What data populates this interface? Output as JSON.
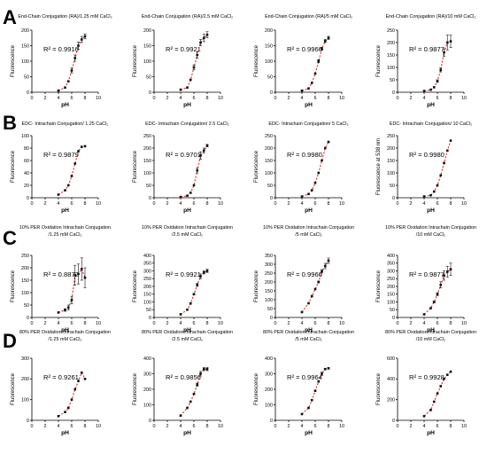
{
  "panel_labels": [
    "A",
    "B",
    "C",
    "D"
  ],
  "chart_data": [
    {
      "type": "scatter",
      "panel": "A",
      "title_lines": [
        "End-Chain Conjugation (RA)/1.25 mM CaCl₂"
      ],
      "xlabel": "pH",
      "ylabel": "Fluorescence",
      "xlim": [
        0,
        10
      ],
      "ylim": [
        0,
        200
      ],
      "x_ticks": [
        0,
        2,
        4,
        6,
        8,
        10
      ],
      "y_ticks": [
        0,
        50,
        100,
        150,
        200
      ],
      "r2": "R² = 0.9916",
      "x": [
        4,
        5,
        5.5,
        6,
        6.5,
        7,
        7.5,
        8
      ],
      "y": [
        5,
        15,
        35,
        70,
        110,
        150,
        170,
        180
      ],
      "err": [
        0,
        0,
        0,
        8,
        10,
        12,
        10,
        8
      ]
    },
    {
      "type": "scatter",
      "panel": "A",
      "title_lines": [
        "End-Chain Conjugation (RA)/2.5 mM CaCl₂"
      ],
      "xlabel": "pH",
      "ylabel": "Fluorescence",
      "xlim": [
        0,
        10
      ],
      "ylim": [
        0,
        200
      ],
      "x_ticks": [
        0,
        2,
        4,
        6,
        8,
        10
      ],
      "y_ticks": [
        0,
        50,
        100,
        150,
        200
      ],
      "r2": "R² = 0.9921",
      "x": [
        4,
        5,
        5.5,
        6,
        6.5,
        7,
        7.5,
        8
      ],
      "y": [
        8,
        15,
        40,
        80,
        120,
        160,
        175,
        185
      ],
      "err": [
        0,
        0,
        0,
        8,
        10,
        10,
        12,
        10
      ]
    },
    {
      "type": "scatter",
      "panel": "A",
      "title_lines": [
        "End-Chain Conjugation (RA)/5 mM CaCl₂"
      ],
      "xlabel": "pH",
      "ylabel": "Fluorescence",
      "xlim": [
        0,
        10
      ],
      "ylim": [
        0,
        200
      ],
      "x_ticks": [
        0,
        2,
        4,
        6,
        8,
        10
      ],
      "y_ticks": [
        0,
        50,
        100,
        150,
        200
      ],
      "r2": "R² = 0.9966",
      "x": [
        4,
        5,
        5.5,
        6,
        6.5,
        7,
        7.5,
        8
      ],
      "y": [
        5,
        12,
        30,
        60,
        100,
        140,
        165,
        175
      ],
      "err": [
        0,
        0,
        0,
        0,
        5,
        5,
        5,
        5
      ]
    },
    {
      "type": "scatter",
      "panel": "A",
      "title_lines": [
        "End-Chain Conjugation (RA)/10 mM CaCl₂"
      ],
      "xlabel": "pH",
      "ylabel": "Fluorescence",
      "xlim": [
        0,
        10
      ],
      "ylim": [
        0,
        250
      ],
      "x_ticks": [
        0,
        2,
        4,
        6,
        8,
        10
      ],
      "y_ticks": [
        0,
        50,
        100,
        150,
        200,
        250
      ],
      "r2": "R² = 0.9877",
      "x": [
        4,
        5,
        5.5,
        6,
        6.5,
        7,
        7.5,
        8
      ],
      "y": [
        5,
        10,
        20,
        45,
        90,
        160,
        200,
        205
      ],
      "err": [
        0,
        0,
        0,
        5,
        8,
        15,
        30,
        25
      ]
    },
    {
      "type": "scatter",
      "panel": "B",
      "title_lines": [
        "EDC- Intrachain Conjugation/ 1.25 CaCl₂"
      ],
      "xlabel": "pH",
      "ylabel": "Fluorescence",
      "xlim": [
        0,
        10
      ],
      "ylim": [
        0,
        100
      ],
      "x_ticks": [
        0,
        2,
        4,
        6,
        8,
        10
      ],
      "y_ticks": [
        0,
        20,
        40,
        60,
        80,
        100
      ],
      "r2": "R² = 0.9879",
      "x": [
        4,
        5,
        5.5,
        6,
        6.5,
        7,
        7.5,
        8
      ],
      "y": [
        5,
        12,
        20,
        35,
        55,
        75,
        82,
        83
      ],
      "err": [
        0,
        0,
        0,
        0,
        0,
        0,
        0,
        0
      ]
    },
    {
      "type": "scatter",
      "panel": "B",
      "title_lines": [
        "EDC- Intrachain Conjugation/ 2.5 CaCl₂"
      ],
      "xlabel": "pH",
      "ylabel": "Fluorescence",
      "xlim": [
        0,
        10
      ],
      "ylim": [
        0,
        250
      ],
      "x_ticks": [
        0,
        2,
        4,
        6,
        8,
        10
      ],
      "y_ticks": [
        0,
        50,
        100,
        150,
        200,
        250
      ],
      "r2": "R² = 0.9701",
      "x": [
        4,
        5,
        5.5,
        6,
        6.5,
        7,
        7.5,
        8
      ],
      "y": [
        3,
        8,
        20,
        50,
        110,
        170,
        190,
        210
      ],
      "err": [
        0,
        0,
        0,
        0,
        10,
        15,
        10,
        5
      ]
    },
    {
      "type": "scatter",
      "panel": "B",
      "title_lines": [
        "EDC- Intrachain Conjugation/ 5 CaCl₂"
      ],
      "xlabel": "pH",
      "ylabel": "Fluorescence",
      "xlim": [
        0,
        10
      ],
      "ylim": [
        0,
        250
      ],
      "x_ticks": [
        0,
        2,
        4,
        6,
        8,
        10
      ],
      "y_ticks": [
        0,
        50,
        100,
        150,
        200,
        250
      ],
      "r2": "R² = 0.9980",
      "x": [
        4,
        5,
        5.5,
        6,
        6.5,
        7,
        7.5,
        8
      ],
      "y": [
        5,
        15,
        30,
        60,
        100,
        150,
        200,
        225
      ],
      "err": [
        0,
        0,
        0,
        0,
        0,
        0,
        0,
        0
      ]
    },
    {
      "type": "scatter",
      "panel": "B",
      "title_lines": [
        "EDC- Intrachain Conjugation/ 10 CaCl₂"
      ],
      "xlabel": "pH",
      "ylabel": "Fluorescence at 538 nm",
      "xlim": [
        0,
        10
      ],
      "ylim": [
        0,
        250
      ],
      "x_ticks": [
        0,
        2,
        4,
        6,
        8,
        10
      ],
      "y_ticks": [
        0,
        50,
        100,
        150,
        200,
        250
      ],
      "r2": "R² = 0.9980",
      "x": [
        4,
        5,
        5.5,
        6,
        6.5,
        7,
        7.5,
        8
      ],
      "y": [
        5,
        10,
        25,
        50,
        90,
        140,
        190,
        230
      ],
      "err": [
        0,
        0,
        0,
        0,
        0,
        0,
        0,
        0
      ]
    },
    {
      "type": "scatter",
      "panel": "C",
      "title_lines": [
        "10% PER Oxidation Intrachain Conjugation",
        "/1.25 mM CaCl₂"
      ],
      "xlabel": "pH",
      "ylabel": "Fluorescence",
      "xlim": [
        0,
        10
      ],
      "ylim": [
        0,
        250
      ],
      "x_ticks": [
        0,
        2,
        4,
        6,
        8,
        10
      ],
      "y_ticks": [
        0,
        50,
        100,
        150,
        200,
        250
      ],
      "r2": "R² = 0.8872",
      "x": [
        4,
        5,
        5.5,
        6,
        6.5,
        7,
        7.5,
        8
      ],
      "y": [
        20,
        30,
        40,
        70,
        170,
        175,
        195,
        160
      ],
      "err": [
        0,
        5,
        10,
        15,
        40,
        40,
        45,
        40
      ]
    },
    {
      "type": "scatter",
      "panel": "C",
      "title_lines": [
        "10% PER Oxidation Intrachain Conjugation",
        "/2.5 mM CaCl₂"
      ],
      "xlabel": "pH",
      "ylabel": "Fluorescence",
      "xlim": [
        0,
        10
      ],
      "ylim": [
        0,
        400
      ],
      "x_ticks": [
        0,
        2,
        4,
        6,
        8,
        10
      ],
      "y_ticks": [
        0,
        50,
        100,
        150,
        200,
        250,
        300,
        350,
        400
      ],
      "r2": "R² = 0.9921",
      "x": [
        4,
        5,
        5.5,
        6,
        6.5,
        7,
        7.5,
        8
      ],
      "y": [
        20,
        50,
        90,
        150,
        210,
        265,
        290,
        300
      ],
      "err": [
        0,
        0,
        0,
        5,
        10,
        15,
        10,
        10
      ]
    },
    {
      "type": "scatter",
      "panel": "C",
      "title_lines": [
        "10% PER Oxidation Intrachain Conjugation",
        "/5 mM CaCl₂"
      ],
      "xlabel": "pH",
      "ylabel": "Fluorescence",
      "xlim": [
        0,
        10
      ],
      "ylim": [
        0,
        350
      ],
      "x_ticks": [
        0,
        2,
        4,
        6,
        8,
        10
      ],
      "y_ticks": [
        0,
        50,
        100,
        150,
        200,
        250,
        300,
        350
      ],
      "r2": "R² = 0.9966",
      "x": [
        4,
        5,
        5.5,
        6,
        6.5,
        7,
        7.5,
        8
      ],
      "y": [
        30,
        80,
        120,
        160,
        200,
        260,
        290,
        320
      ],
      "err": [
        0,
        0,
        0,
        0,
        5,
        10,
        15,
        15
      ]
    },
    {
      "type": "scatter",
      "panel": "C",
      "title_lines": [
        "10% PER Oxidation Intrachain Conjugation",
        "/10 mM CaCl₂"
      ],
      "xlabel": "pH",
      "ylabel": "Fluorescence",
      "xlim": [
        0,
        10
      ],
      "ylim": [
        0,
        400
      ],
      "x_ticks": [
        0,
        2,
        4,
        6,
        8,
        10
      ],
      "y_ticks": [
        0,
        50,
        100,
        150,
        200,
        250,
        300,
        350,
        400
      ],
      "r2": "R² = 0.9877",
      "x": [
        4,
        5,
        5.5,
        6,
        6.5,
        7,
        7.5,
        8
      ],
      "y": [
        20,
        60,
        100,
        150,
        210,
        270,
        295,
        310
      ],
      "err": [
        0,
        0,
        5,
        10,
        20,
        30,
        35,
        40
      ]
    },
    {
      "type": "scatter",
      "panel": "D",
      "title_lines": [
        "80% PER Oxidation Intrachain Conjugation",
        "/1.25 mM CaCl₂"
      ],
      "xlabel": "pH",
      "ylabel": "Fluorescence",
      "xlim": [
        0,
        10
      ],
      "ylim": [
        0,
        300
      ],
      "x_ticks": [
        0,
        2,
        4,
        6,
        8,
        10
      ],
      "y_ticks": [
        0,
        100,
        200,
        300
      ],
      "r2": "R² = 0.9261",
      "x": [
        4,
        5,
        5.5,
        6,
        6.5,
        7,
        7.5,
        8
      ],
      "y": [
        20,
        40,
        60,
        100,
        150,
        190,
        230,
        200
      ],
      "err": [
        0,
        0,
        0,
        0,
        0,
        0,
        0,
        0
      ]
    },
    {
      "type": "scatter",
      "panel": "D",
      "title_lines": [
        "80% PER Oxidation Intrachain Conjugation",
        "/2.5 mM CaCl₂"
      ],
      "xlabel": "pH",
      "ylabel": "Fluorescence",
      "xlim": [
        0,
        10
      ],
      "ylim": [
        0,
        400
      ],
      "x_ticks": [
        0,
        2,
        4,
        6,
        8,
        10
      ],
      "y_ticks": [
        0,
        100,
        200,
        300,
        400
      ],
      "r2": "R² = 0.9856",
      "x": [
        4,
        5,
        5.5,
        6,
        6.5,
        7,
        7.5,
        8
      ],
      "y": [
        30,
        80,
        120,
        170,
        230,
        300,
        330,
        330
      ],
      "err": [
        0,
        0,
        0,
        0,
        10,
        15,
        10,
        10
      ]
    },
    {
      "type": "scatter",
      "panel": "D",
      "title_lines": [
        "80% PER Oxidation Intrachain Conjugation",
        "/5 mM CaCl₂"
      ],
      "xlabel": "pH",
      "ylabel": "Fluorescence",
      "xlim": [
        0,
        10
      ],
      "ylim": [
        0,
        400
      ],
      "x_ticks": [
        0,
        2,
        4,
        6,
        8,
        10
      ],
      "y_ticks": [
        0,
        100,
        200,
        300,
        400
      ],
      "r2": "R² = 0.9964",
      "x": [
        4,
        5,
        5.5,
        6,
        6.5,
        7,
        7.5,
        8
      ],
      "y": [
        40,
        80,
        130,
        190,
        250,
        300,
        330,
        335
      ],
      "err": [
        0,
        0,
        0,
        0,
        0,
        10,
        5,
        5
      ]
    },
    {
      "type": "scatter",
      "panel": "D",
      "title_lines": [
        "80% PER Oxidation Intrachain Conjugation",
        "/10 mM CaCl₂"
      ],
      "xlabel": "pH",
      "ylabel": "Fluorescence",
      "xlim": [
        0,
        10
      ],
      "ylim": [
        0,
        600
      ],
      "x_ticks": [
        0,
        2,
        4,
        6,
        8,
        10
      ],
      "y_ticks": [
        0,
        200,
        400,
        600
      ],
      "r2": "R² = 0.9928",
      "x": [
        4,
        5,
        5.5,
        6,
        6.5,
        7,
        7.5,
        8
      ],
      "y": [
        40,
        100,
        180,
        260,
        330,
        400,
        440,
        470
      ],
      "err": [
        0,
        0,
        0,
        0,
        0,
        0,
        0,
        0
      ]
    }
  ]
}
